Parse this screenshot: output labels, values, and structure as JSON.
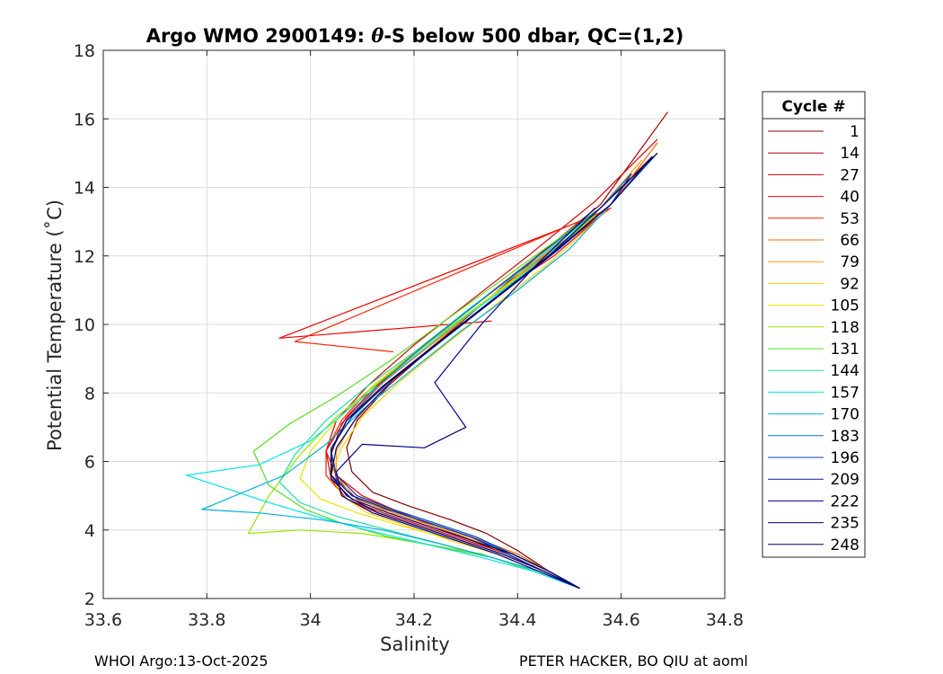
{
  "chart_data": {
    "type": "line",
    "title_prefix": "Argo WMO 2900149: ",
    "title_theta": "θ",
    "title_suffix": "-S below 500 dbar,  QC=(1,2)",
    "xlabel": "Salinity",
    "ylabel": "Potential Temperature (˚C)",
    "xlim": [
      33.6,
      34.8
    ],
    "ylim": [
      2,
      18
    ],
    "xticks": [
      33.6,
      33.8,
      34,
      34.2,
      34.4,
      34.6,
      34.8
    ],
    "xtick_labels": [
      "33.6",
      "33.8",
      "34",
      "34.2",
      "34.4",
      "34.6",
      "34.8"
    ],
    "yticks": [
      2,
      4,
      6,
      8,
      10,
      12,
      14,
      16,
      18
    ],
    "ytick_labels": [
      "2",
      "4",
      "6",
      "8",
      "10",
      "12",
      "14",
      "16",
      "18"
    ],
    "grid": true,
    "legend_title": "Cycle #",
    "legend_position": "right-outside",
    "series": [
      {
        "name": "1",
        "color": "#800000",
        "x": [
          34.52,
          34.46,
          34.4,
          34.34,
          34.27,
          34.19,
          34.12,
          34.08,
          34.07,
          34.09,
          34.15,
          34.24,
          34.34,
          34.44,
          34.56,
          34.66
        ],
        "y": [
          2.3,
          2.8,
          3.4,
          3.9,
          4.3,
          4.7,
          5.1,
          5.7,
          6.4,
          7.2,
          8.2,
          9.4,
          10.7,
          12.0,
          13.4,
          14.9
        ]
      },
      {
        "name": "14",
        "color": "#b00000",
        "x": [
          34.52,
          34.45,
          34.38,
          34.31,
          34.24,
          34.16,
          34.09,
          34.05,
          34.04,
          34.06,
          34.12,
          34.21,
          34.32,
          34.43,
          34.56,
          34.69
        ],
        "y": [
          2.3,
          2.8,
          3.3,
          3.7,
          4.1,
          4.5,
          4.9,
          5.5,
          6.2,
          7.1,
          8.1,
          9.3,
          10.6,
          11.9,
          13.5,
          16.2
        ]
      },
      {
        "name": "27",
        "color": "#d40000",
        "x": [
          34.52,
          34.45,
          34.38,
          34.3,
          34.22,
          34.14,
          34.07,
          34.04,
          34.03,
          34.05,
          34.11,
          34.2,
          34.31,
          34.42,
          34.55,
          34.67
        ],
        "y": [
          2.3,
          2.8,
          3.3,
          3.7,
          4.1,
          4.5,
          4.9,
          5.5,
          6.3,
          7.2,
          8.2,
          9.4,
          10.7,
          12.0,
          13.6,
          15.4
        ]
      },
      {
        "name": "40",
        "color": "#f00000",
        "x": [
          34.52,
          34.46,
          34.39,
          34.31,
          34.24,
          34.16,
          34.1,
          34.05,
          34.03,
          34.07,
          34.14,
          34.24,
          34.35,
          34.47,
          34.57,
          33.94,
          34.35
        ],
        "y": [
          2.3,
          2.8,
          3.3,
          3.7,
          4.1,
          4.6,
          5.0,
          5.6,
          6.3,
          7.3,
          8.4,
          9.6,
          10.8,
          12.0,
          13.3,
          9.6,
          10.1
        ]
      },
      {
        "name": "53",
        "color": "#ff2200",
        "x": [
          34.52,
          34.45,
          34.37,
          34.29,
          34.21,
          34.13,
          34.07,
          34.03,
          34.03,
          34.06,
          34.12,
          34.22,
          34.33,
          34.45,
          34.58,
          33.97,
          34.16
        ],
        "y": [
          2.3,
          2.8,
          3.3,
          3.7,
          4.1,
          4.5,
          4.9,
          5.6,
          6.3,
          7.2,
          8.2,
          9.4,
          10.6,
          11.9,
          13.4,
          9.5,
          9.2
        ]
      },
      {
        "name": "66",
        "color": "#ff6600",
        "x": [
          34.52,
          34.46,
          34.4,
          34.33,
          34.25,
          34.17,
          34.09,
          34.05,
          34.04,
          34.07,
          34.14,
          34.24,
          34.35,
          34.46,
          34.58,
          34.67
        ],
        "y": [
          2.3,
          2.8,
          3.3,
          3.7,
          4.1,
          4.5,
          5.0,
          5.6,
          6.3,
          7.2,
          8.3,
          9.5,
          10.8,
          12.1,
          13.5,
          15.3
        ]
      },
      {
        "name": "79",
        "color": "#ff9900",
        "x": [
          34.52,
          34.45,
          34.38,
          34.3,
          34.22,
          34.14,
          34.08,
          34.05,
          34.05,
          34.08,
          34.14,
          34.23,
          34.33,
          34.44,
          34.56,
          34.64
        ],
        "y": [
          2.3,
          2.8,
          3.3,
          3.8,
          4.2,
          4.6,
          5.0,
          5.6,
          6.3,
          7.1,
          8.1,
          9.3,
          10.6,
          11.9,
          13.4,
          14.8
        ]
      },
      {
        "name": "92",
        "color": "#ffcc00",
        "x": [
          34.52,
          34.44,
          34.36,
          34.27,
          34.19,
          34.11,
          34.06,
          34.04,
          34.06,
          34.1,
          34.17,
          34.26,
          34.36,
          34.47,
          34.57
        ],
        "y": [
          2.3,
          2.8,
          3.3,
          3.7,
          4.1,
          4.5,
          5.0,
          5.6,
          6.4,
          7.3,
          8.3,
          9.4,
          10.6,
          11.9,
          13.3
        ]
      },
      {
        "name": "105",
        "color": "#e6e600",
        "x": [
          34.52,
          34.44,
          34.36,
          34.28,
          34.18,
          34.09,
          34.02,
          33.98,
          34.0,
          34.05,
          34.12,
          34.21,
          34.32,
          34.43,
          34.54
        ],
        "y": [
          2.3,
          2.8,
          3.3,
          3.7,
          4.1,
          4.5,
          4.9,
          5.5,
          6.3,
          7.2,
          8.2,
          9.3,
          10.5,
          11.7,
          13.0
        ]
      },
      {
        "name": "118",
        "color": "#99e600",
        "x": [
          34.52,
          34.43,
          34.33,
          34.22,
          34.1,
          33.98,
          33.88,
          33.92,
          33.98,
          34.05,
          34.14,
          34.24,
          34.35,
          34.46,
          34.55
        ],
        "y": [
          2.3,
          2.8,
          3.3,
          3.6,
          3.9,
          4.0,
          3.9,
          5.0,
          6.2,
          7.3,
          8.4,
          9.6,
          10.8,
          12.0,
          13.2
        ]
      },
      {
        "name": "131",
        "color": "#55dd22",
        "x": [
          34.52,
          34.44,
          34.35,
          34.25,
          34.15,
          34.06,
          33.99,
          33.92,
          33.89,
          33.96,
          34.05,
          34.15,
          34.25,
          34.36,
          34.47,
          34.55
        ],
        "y": [
          2.3,
          2.8,
          3.2,
          3.5,
          3.8,
          4.2,
          4.6,
          5.3,
          6.3,
          7.1,
          7.9,
          8.9,
          10.0,
          11.2,
          12.4,
          13.3
        ]
      },
      {
        "name": "144",
        "color": "#22ddaa",
        "x": [
          34.52,
          34.44,
          34.35,
          34.25,
          34.15,
          34.05,
          33.98,
          33.94,
          33.97,
          34.03,
          34.11,
          34.21,
          34.31,
          34.42,
          34.53
        ],
        "y": [
          2.3,
          2.8,
          3.2,
          3.6,
          4.0,
          4.4,
          4.8,
          5.4,
          6.2,
          7.2,
          8.2,
          9.3,
          10.5,
          11.7,
          13.0
        ]
      },
      {
        "name": "157",
        "color": "#00e6e6",
        "x": [
          34.52,
          34.43,
          34.33,
          34.22,
          34.11,
          34.01,
          33.92,
          33.76,
          33.9,
          34.0,
          34.08,
          34.17,
          34.27,
          34.38,
          34.48,
          34.56
        ],
        "y": [
          2.3,
          2.8,
          3.2,
          3.6,
          4.0,
          4.4,
          4.8,
          5.6,
          5.9,
          6.6,
          7.6,
          8.7,
          9.9,
          11.1,
          12.3,
          13.4
        ]
      },
      {
        "name": "170",
        "color": "#00b0e0",
        "x": [
          34.52,
          34.44,
          34.35,
          34.25,
          34.14,
          34.02,
          33.9,
          33.79,
          33.95,
          34.03,
          34.1,
          34.19,
          34.29,
          34.4,
          34.5,
          34.58
        ],
        "y": [
          2.3,
          2.8,
          3.2,
          3.6,
          4.0,
          4.3,
          4.5,
          4.6,
          5.6,
          6.5,
          7.5,
          8.6,
          9.8,
          11.0,
          12.2,
          13.5
        ]
      },
      {
        "name": "183",
        "color": "#0077cc",
        "x": [
          34.52,
          34.46,
          34.39,
          34.31,
          34.23,
          34.15,
          34.08,
          34.04,
          34.04,
          34.07,
          34.13,
          34.22,
          34.33,
          34.44,
          34.56,
          34.62
        ],
        "y": [
          2.3,
          2.8,
          3.3,
          3.8,
          4.2,
          4.6,
          5.0,
          5.6,
          6.3,
          7.2,
          8.2,
          9.4,
          10.7,
          12.0,
          13.4,
          14.4
        ]
      },
      {
        "name": "196",
        "color": "#0044bb",
        "x": [
          34.52,
          34.46,
          34.39,
          34.32,
          34.24,
          34.16,
          34.09,
          34.05,
          34.04,
          34.07,
          34.14,
          34.24,
          34.35,
          34.46,
          34.58,
          34.67
        ],
        "y": [
          2.3,
          2.8,
          3.3,
          3.8,
          4.2,
          4.6,
          5.0,
          5.6,
          6.3,
          7.2,
          8.2,
          9.4,
          10.7,
          12.0,
          13.5,
          15.0
        ]
      },
      {
        "name": "209",
        "color": "#0022aa",
        "x": [
          34.52,
          34.45,
          34.38,
          34.31,
          34.23,
          34.15,
          34.08,
          34.04,
          34.04,
          34.08,
          34.15,
          34.25,
          34.36,
          34.47,
          34.58,
          34.62
        ],
        "y": [
          2.3,
          2.8,
          3.3,
          3.8,
          4.2,
          4.6,
          5.0,
          5.6,
          6.4,
          7.3,
          8.3,
          9.5,
          10.8,
          12.1,
          13.5,
          14.4
        ]
      },
      {
        "name": "222",
        "color": "#000090",
        "x": [
          34.52,
          34.44,
          34.36,
          34.28,
          34.2,
          34.12,
          34.06,
          34.05,
          34.1,
          34.22,
          34.3,
          34.24,
          34.33,
          34.44,
          34.55
        ],
        "y": [
          2.3,
          2.8,
          3.3,
          3.7,
          4.1,
          4.5,
          5.0,
          5.7,
          6.5,
          6.4,
          7.0,
          8.3,
          10.0,
          11.8,
          13.4
        ]
      },
      {
        "name": "235",
        "color": "#000070",
        "x": [
          34.52,
          34.45,
          34.37,
          34.29,
          34.21,
          34.13,
          34.07,
          34.04,
          34.05,
          34.09,
          34.16,
          34.26,
          34.37,
          34.48,
          34.58,
          34.66
        ],
        "y": [
          2.3,
          2.8,
          3.3,
          3.7,
          4.1,
          4.5,
          5.0,
          5.6,
          6.4,
          7.3,
          8.4,
          9.6,
          10.9,
          12.2,
          13.5,
          14.9
        ]
      },
      {
        "name": "248",
        "color": "#000060",
        "x": [
          34.52,
          34.46,
          34.39,
          34.31,
          34.23,
          34.15,
          34.08,
          34.04,
          34.04,
          34.07,
          34.14,
          34.24,
          34.35,
          34.46,
          34.56,
          34.67
        ],
        "y": [
          2.3,
          2.8,
          3.3,
          3.7,
          4.1,
          4.5,
          4.9,
          5.5,
          6.3,
          7.2,
          8.2,
          9.4,
          10.7,
          12.0,
          13.4,
          15.0
        ]
      }
    ]
  },
  "footer": {
    "left": "WHOI Argo:13-Oct-2025",
    "right": "PETER HACKER, BO QIU at aoml"
  }
}
